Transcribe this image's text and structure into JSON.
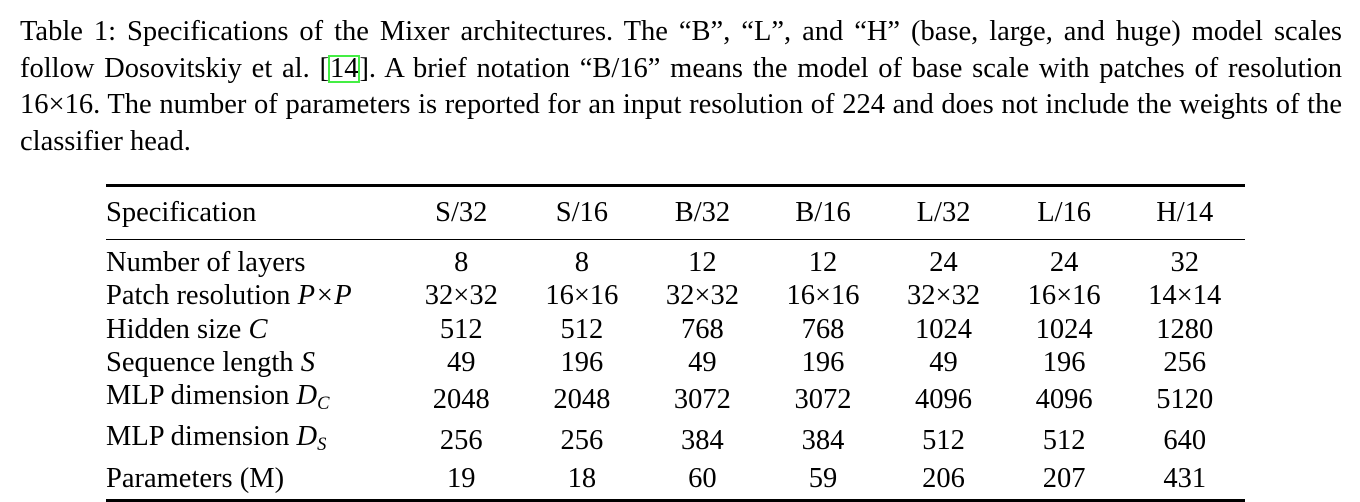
{
  "caption": {
    "label": "Table 1:",
    "text_before_cite": " Specifications of the Mixer architectures. The “B”, “L”, and “H” (base, large, and huge) model scales follow Dosovitskiy et al. [",
    "cite": "14",
    "text_after_cite": "]. A brief notation “B/16” means the model of base scale with patches of resolution 16×16. The number of parameters is reported for an input resolution of 224 and does not include the weights of the classifier head."
  },
  "table": {
    "header_label": "Specification",
    "columns": [
      "S/32",
      "S/16",
      "B/32",
      "B/16",
      "L/32",
      "L/16",
      "H/14"
    ],
    "rows": [
      {
        "label": "Number of layers",
        "math": "",
        "sub": "",
        "values": [
          "8",
          "8",
          "12",
          "12",
          "24",
          "24",
          "32"
        ]
      },
      {
        "label": "Patch resolution ",
        "math": "P×P",
        "sub": "",
        "values": [
          "32×32",
          "16×16",
          "32×32",
          "16×16",
          "32×32",
          "16×16",
          "14×14"
        ]
      },
      {
        "label": "Hidden size ",
        "math": "C",
        "sub": "",
        "values": [
          "512",
          "512",
          "768",
          "768",
          "1024",
          "1024",
          "1280"
        ]
      },
      {
        "label": "Sequence length ",
        "math": "S",
        "sub": "",
        "values": [
          "49",
          "196",
          "49",
          "196",
          "49",
          "196",
          "256"
        ]
      },
      {
        "label": "MLP dimension ",
        "math": "D",
        "sub": "C",
        "values": [
          "2048",
          "2048",
          "3072",
          "3072",
          "4096",
          "4096",
          "5120"
        ]
      },
      {
        "label": "MLP dimension ",
        "math": "D",
        "sub": "S",
        "values": [
          "256",
          "256",
          "384",
          "384",
          "512",
          "512",
          "640"
        ]
      },
      {
        "label": "Parameters (M)",
        "math": "",
        "sub": "",
        "values": [
          "19",
          "18",
          "60",
          "59",
          "206",
          "207",
          "431"
        ]
      }
    ]
  }
}
